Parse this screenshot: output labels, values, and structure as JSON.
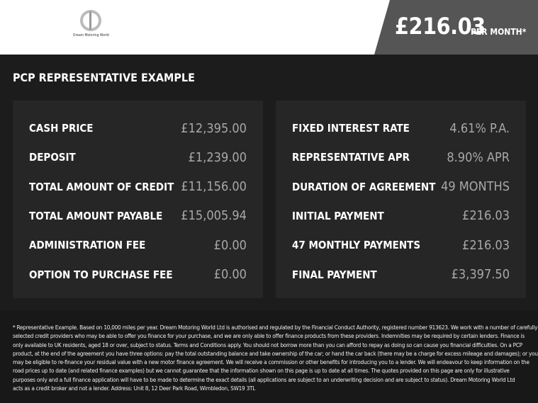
{
  "header": {
    "logo_text": "Dream Motoring World",
    "monthly_price": "£216.03",
    "per_month_label": "PER MONTH*"
  },
  "section_title": "PCP REPRESENTATIVE EXAMPLE",
  "left_rows": [
    {
      "label": "CASH PRICE",
      "value": "£12,395.00"
    },
    {
      "label": "DEPOSIT",
      "value": "£1,239.00"
    },
    {
      "label": "TOTAL AMOUNT OF CREDIT",
      "value": "£11,156.00"
    },
    {
      "label": "TOTAL AMOUNT PAYABLE",
      "value": "£15,005.94"
    },
    {
      "label": "ADMINISTRATION FEE",
      "value": "£0.00"
    },
    {
      "label": "OPTION TO PURCHASE FEE",
      "value": "£0.00"
    }
  ],
  "right_rows": [
    {
      "label": "FIXED INTEREST RATE",
      "value": "4.61% P.A."
    },
    {
      "label": "REPRESENTATIVE APR",
      "value": "8.90% APR"
    },
    {
      "label": "DURATION OF AGREEMENT",
      "value": "49 MONTHS"
    },
    {
      "label": "INITIAL PAYMENT",
      "value": "£216.03"
    },
    {
      "label": "47 MONTHLY PAYMENTS",
      "value": "£216.03"
    },
    {
      "label": "FINAL PAYMENT",
      "value": "£3,397.50"
    }
  ],
  "disclaimer_lines": [
    "* Representative Example. Based on 10,000 miles per year. Dream Motoring World Ltd is authorised and regulated by the Financial Conduct Authority, registered number 913623. We work with a number of carefully",
    "selected credit providers who may be able to offer you finance for your purchase, and we are only able to offer finance products from these providers. Indemnities may be required by certain lenders. Finance is",
    "only available to UK residents, aged 18 or over, subject to status. Terms and Conditions apply. You should not borrow more than you can afford to repay as doing so can cause you financial difficulties. On a PCP",
    "product, at the end of the agreement you have three options: pay the total outstanding balance and take ownership of the car; or hand the car back (there may be a charge for excess mileage and damages); or you",
    "may be eligible to re-finance your residual value with a new motor finance agreement. We will receive a commission or other benefits for introducing you to a lender. We will endeavour to keep information on the",
    "road prices up to date (and related finance examples) but we cannot guarantee that the information shown on this page is up to date at all times. The quotes provided on this page are only for illustrative",
    "purposes only and a full finance application will have to be made to determine the exact details (all applications are subject to an underwriting decision and are subject to status). Dream Motoring World Ltd",
    "acts as a credit broker and not a lender. Address: Unit 8, 12 Deer Park Road, Wimbledon, SW19 3TL"
  ]
}
